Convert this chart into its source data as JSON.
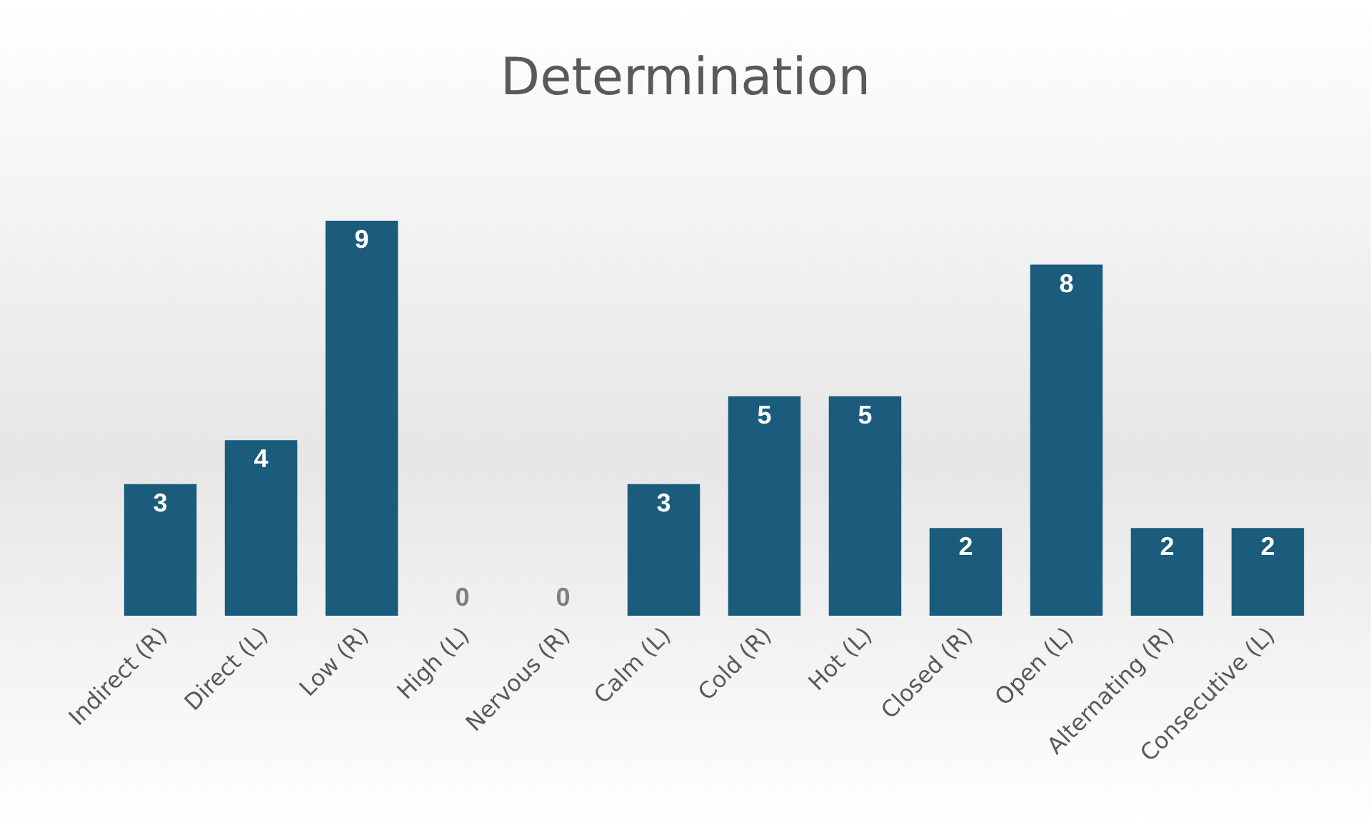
{
  "chart_data": {
    "type": "bar",
    "title": "Determination",
    "categories": [
      "Indirect (R)",
      "Direct (L)",
      "Low (R)",
      "High (L)",
      "Nervous (R)",
      "Calm (L)",
      "Cold (R)",
      "Hot (L)",
      "Closed (R)",
      "Open (L)",
      "Alternating (R)",
      "Consecutive (L)"
    ],
    "values": [
      3,
      4,
      9,
      0,
      0,
      3,
      5,
      5,
      2,
      8,
      2,
      2
    ],
    "color": "#1b5b7b",
    "data_labels": true,
    "grid": false
  }
}
